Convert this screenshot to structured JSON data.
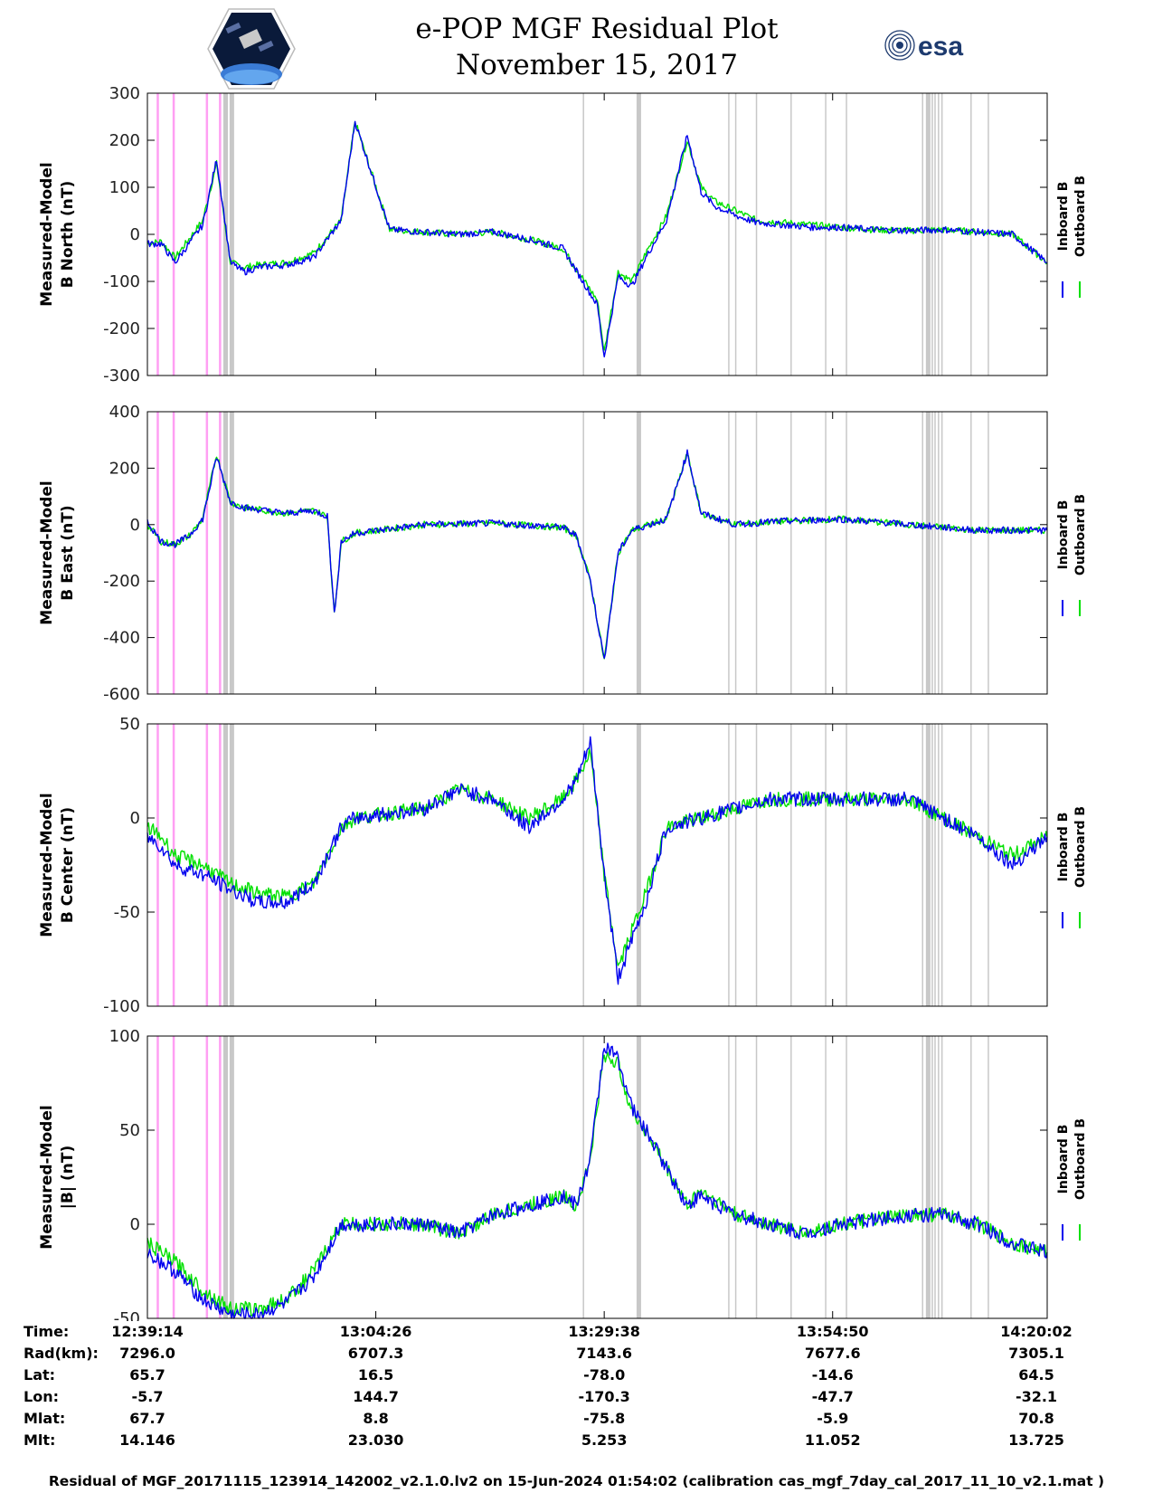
{
  "header": {
    "title_line1": "e-POP MGF Residual Plot",
    "title_line2": "November 15, 2017",
    "left_logo": "cassiope-logo",
    "right_logo": "esa-logo",
    "right_logo_text": "esa"
  },
  "colors": {
    "inboard": "#0000ee",
    "outboard": "#00e000",
    "magenta_marker": "#ff9ff3",
    "gray_marker": "#c8c8c8",
    "grid": "#d0d0d0"
  },
  "chart_data": [
    {
      "type": "line",
      "ylabel_line1": "Measured-Model",
      "ylabel_line2": "B North (nT)",
      "ylim": [
        -300,
        300
      ],
      "yticks": [
        -300,
        -200,
        -100,
        0,
        100,
        200,
        300
      ],
      "legend": [
        "Inboard B",
        "Outboard B"
      ],
      "legend_position": "right",
      "series": [
        {
          "name": "Outboard B",
          "x": [
            0,
            2,
            4,
            6,
            8,
            10,
            12,
            14,
            16,
            20,
            24,
            28,
            30,
            35,
            40,
            45,
            50,
            55,
            60,
            65,
            66,
            68,
            70,
            72,
            75,
            78,
            80,
            82,
            85,
            88,
            92,
            96,
            100,
            105,
            110,
            115,
            120,
            125,
            130
          ],
          "y": [
            -20,
            -15,
            -50,
            -10,
            30,
            150,
            -60,
            -70,
            -65,
            -60,
            -40,
            30,
            240,
            10,
            5,
            0,
            5,
            -10,
            -30,
            -140,
            -250,
            -80,
            -100,
            -40,
            40,
            200,
            100,
            70,
            50,
            30,
            25,
            20,
            15,
            10,
            8,
            10,
            5,
            0,
            -60
          ]
        },
        {
          "name": "Inboard B",
          "x": [
            0,
            2,
            4,
            6,
            8,
            10,
            12,
            14,
            16,
            20,
            24,
            28,
            30,
            35,
            40,
            45,
            50,
            55,
            60,
            65,
            66,
            68,
            70,
            72,
            75,
            78,
            80,
            82,
            85,
            88,
            92,
            96,
            100,
            105,
            110,
            115,
            120,
            125,
            130
          ],
          "y": [
            -20,
            -20,
            -60,
            -20,
            20,
            160,
            -60,
            -80,
            -70,
            -65,
            -50,
            30,
            240,
            10,
            5,
            0,
            5,
            -10,
            -30,
            -150,
            -260,
            -90,
            -110,
            -50,
            30,
            210,
            90,
            60,
            40,
            25,
            20,
            15,
            15,
            10,
            8,
            10,
            5,
            0,
            -60
          ]
        }
      ]
    },
    {
      "type": "line",
      "ylabel_line1": "Measured-Model",
      "ylabel_line2": "B East (nT)",
      "ylim": [
        -600,
        400
      ],
      "yticks": [
        -600,
        -400,
        -200,
        0,
        200,
        400
      ],
      "legend": [
        "Inboard B",
        "Outboard B"
      ],
      "legend_position": "right",
      "series": [
        {
          "name": "Outboard B",
          "x": [
            0,
            2,
            4,
            6,
            8,
            10,
            12,
            14,
            20,
            24,
            26,
            27,
            28,
            30,
            40,
            50,
            60,
            62,
            64,
            66,
            68,
            70,
            75,
            78,
            80,
            85,
            90,
            100,
            110,
            120,
            130
          ],
          "y": [
            0,
            -60,
            -70,
            -40,
            20,
            250,
            80,
            60,
            40,
            50,
            30,
            -320,
            -60,
            -30,
            0,
            5,
            -10,
            -40,
            -200,
            -480,
            -100,
            -20,
            20,
            250,
            40,
            0,
            10,
            20,
            0,
            -20,
            -20
          ]
        },
        {
          "name": "Inboard B",
          "x": [
            0,
            2,
            4,
            6,
            8,
            10,
            12,
            14,
            20,
            24,
            26,
            27,
            28,
            30,
            40,
            50,
            60,
            62,
            64,
            66,
            68,
            70,
            75,
            78,
            80,
            85,
            90,
            100,
            110,
            120,
            130
          ],
          "y": [
            10,
            -60,
            -70,
            -40,
            20,
            240,
            80,
            60,
            40,
            50,
            30,
            -320,
            -60,
            -30,
            0,
            5,
            -10,
            -40,
            -200,
            -480,
            -100,
            -20,
            20,
            255,
            40,
            0,
            10,
            20,
            0,
            -20,
            -20
          ]
        }
      ]
    },
    {
      "type": "line",
      "ylabel_line1": "Measured-Model",
      "ylabel_line2": "B Center (nT)",
      "ylim": [
        -100,
        50
      ],
      "yticks": [
        -100,
        -50,
        0,
        50
      ],
      "legend": [
        "Inboard B",
        "Outboard B"
      ],
      "legend_position": "right",
      "series": [
        {
          "name": "Outboard B",
          "x": [
            0,
            2,
            4,
            8,
            12,
            16,
            20,
            24,
            28,
            30,
            40,
            45,
            50,
            55,
            60,
            62,
            64,
            66,
            68,
            70,
            72,
            75,
            80,
            90,
            100,
            110,
            115,
            120,
            125,
            130
          ],
          "y": [
            -5,
            -10,
            -20,
            -25,
            -35,
            -40,
            -42,
            -35,
            -5,
            0,
            5,
            15,
            10,
            0,
            10,
            20,
            35,
            -30,
            -80,
            -60,
            -40,
            -5,
            0,
            10,
            10,
            10,
            0,
            -10,
            -20,
            -10
          ]
        },
        {
          "name": "Inboard B",
          "x": [
            0,
            2,
            4,
            8,
            12,
            16,
            20,
            24,
            28,
            30,
            40,
            45,
            50,
            55,
            60,
            62,
            64,
            66,
            68,
            70,
            72,
            75,
            80,
            90,
            100,
            110,
            115,
            120,
            125,
            130
          ],
          "y": [
            -10,
            -15,
            -25,
            -30,
            -38,
            -45,
            -45,
            -35,
            -5,
            0,
            5,
            15,
            10,
            -5,
            10,
            20,
            40,
            -30,
            -85,
            -65,
            -45,
            -5,
            0,
            10,
            10,
            10,
            0,
            -10,
            -25,
            -10
          ]
        }
      ]
    },
    {
      "type": "line",
      "ylabel_line1": "Measured-Model",
      "ylabel_line2": "|B| (nT)",
      "ylim": [
        -50,
        100
      ],
      "yticks": [
        -50,
        0,
        50,
        100
      ],
      "legend": [
        "Inboard B",
        "Outboard B"
      ],
      "legend_position": "right",
      "series": [
        {
          "name": "Outboard B",
          "x": [
            0,
            2,
            4,
            8,
            12,
            16,
            20,
            24,
            28,
            30,
            35,
            40,
            45,
            50,
            55,
            60,
            62,
            64,
            66,
            68,
            70,
            72,
            75,
            78,
            80,
            85,
            90,
            95,
            100,
            110,
            115,
            120,
            125,
            130
          ],
          "y": [
            -10,
            -15,
            -20,
            -35,
            -45,
            -45,
            -40,
            -25,
            0,
            0,
            0,
            0,
            -5,
            5,
            10,
            15,
            10,
            35,
            90,
            85,
            60,
            50,
            30,
            10,
            18,
            5,
            0,
            -5,
            0,
            5,
            5,
            0,
            -10,
            -15
          ]
        },
        {
          "name": "Inboard B",
          "x": [
            0,
            2,
            4,
            8,
            12,
            16,
            20,
            24,
            28,
            30,
            35,
            40,
            45,
            50,
            55,
            60,
            62,
            64,
            66,
            68,
            70,
            72,
            75,
            78,
            80,
            85,
            90,
            95,
            100,
            110,
            115,
            120,
            125,
            130
          ],
          "y": [
            -15,
            -20,
            -25,
            -40,
            -48,
            -48,
            -42,
            -28,
            0,
            0,
            0,
            0,
            -5,
            5,
            10,
            15,
            10,
            35,
            95,
            88,
            62,
            50,
            30,
            10,
            15,
            5,
            0,
            -5,
            0,
            5,
            5,
            0,
            -10,
            -15
          ]
        }
      ]
    }
  ],
  "shared_axis": {
    "xlim": [
      0,
      130
    ],
    "xtick_values": [
      0,
      33,
      66,
      99,
      130
    ]
  },
  "markers": {
    "magenta_x": [
      1.5,
      3.8,
      8.6,
      10.5
    ],
    "gray_x": [
      11.3,
      12.2,
      63,
      71,
      84,
      85,
      88,
      93,
      98,
      101,
      112,
      112.8,
      113.4,
      113.8,
      114.3,
      114.8,
      119,
      121.5
    ]
  },
  "info": {
    "labels": [
      "Time:",
      "Rad(km):",
      "Lat:",
      "Lon:",
      "Mlat:",
      "Mlt:"
    ],
    "columns": [
      {
        "Time": "12:39:14",
        "Rad": "7296.0",
        "Lat": "65.7",
        "Lon": "-5.7",
        "Mlat": "67.7",
        "Mlt": "14.146"
      },
      {
        "Time": "13:04:26",
        "Rad": "6707.3",
        "Lat": "16.5",
        "Lon": "144.7",
        "Mlat": "8.8",
        "Mlt": "23.030"
      },
      {
        "Time": "13:29:38",
        "Rad": "7143.6",
        "Lat": "-78.0",
        "Lon": "-170.3",
        "Mlat": "-75.8",
        "Mlt": "5.253"
      },
      {
        "Time": "13:54:50",
        "Rad": "7677.6",
        "Lat": "-14.6",
        "Lon": "-47.7",
        "Mlat": "-5.9",
        "Mlt": "11.052"
      },
      {
        "Time": "14:20:02",
        "Rad": "7305.1",
        "Lat": "64.5",
        "Lon": "-32.1",
        "Mlat": "70.8",
        "Mlt": "13.725"
      }
    ]
  },
  "footer": "Residual of MGF_20171115_123914_142002_v2.1.0.lv2 on 15-Jun-2024 01:54:02 (calibration cas_mgf_7day_cal_2017_11_10_v2.1.mat )"
}
